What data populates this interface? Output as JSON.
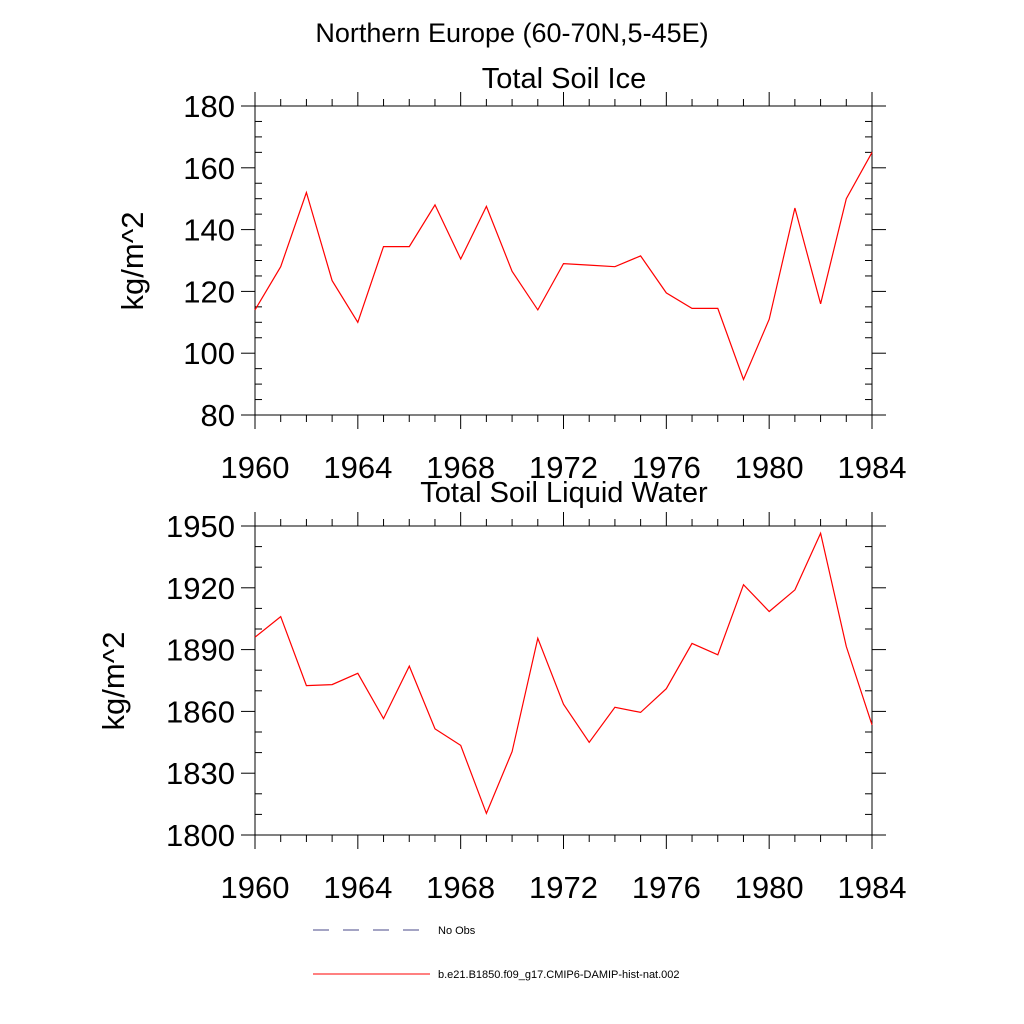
{
  "figure": {
    "main_title": "Northern Europe (60-70N,5-45E)"
  },
  "legend": {
    "items": [
      {
        "label": "No Obs",
        "style": "dashed",
        "color": "#4a4a8a"
      },
      {
        "label": "b.e21.B1850.f09_g17.CMIP6-DAMIP-hist-nat.002",
        "style": "solid",
        "color": "#ff0000"
      }
    ]
  },
  "chart_data": [
    {
      "type": "line",
      "title": "Total Soil Ice",
      "xlabel": "",
      "ylabel": "kg/m^2",
      "xlim": [
        1960,
        1984
      ],
      "ylim": [
        80,
        180
      ],
      "xticks": [
        1960,
        1964,
        1968,
        1972,
        1976,
        1980,
        1984
      ],
      "yticks": [
        80,
        100,
        120,
        140,
        160,
        180
      ],
      "y_minor_step": 5,
      "x_minor_step": 1,
      "grid": false,
      "series": [
        {
          "name": "b.e21.B1850.f09_g17.CMIP6-DAMIP-hist-nat.002",
          "color": "#ff0000",
          "x": [
            1960,
            1961,
            1962,
            1963,
            1964,
            1965,
            1966,
            1967,
            1968,
            1969,
            1970,
            1971,
            1972,
            1973,
            1974,
            1975,
            1976,
            1977,
            1978,
            1979,
            1980,
            1981,
            1982,
            1983,
            1984
          ],
          "y": [
            114,
            128,
            152,
            123.5,
            110,
            134.5,
            134.5,
            148,
            130.5,
            147.5,
            126.5,
            114,
            129,
            128.5,
            128,
            131.5,
            119.5,
            114.5,
            114.5,
            91.5,
            111,
            147,
            116,
            150,
            165
          ]
        }
      ]
    },
    {
      "type": "line",
      "title": "Total Soil Liquid Water",
      "xlabel": "",
      "ylabel": "kg/m^2",
      "xlim": [
        1960,
        1984
      ],
      "ylim": [
        1800,
        1950
      ],
      "xticks": [
        1960,
        1964,
        1968,
        1972,
        1976,
        1980,
        1984
      ],
      "yticks": [
        1800,
        1830,
        1860,
        1890,
        1920,
        1950
      ],
      "y_minor_step": 10,
      "x_minor_step": 1,
      "grid": false,
      "series": [
        {
          "name": "b.e21.B1850.f09_g17.CMIP6-DAMIP-hist-nat.002",
          "color": "#ff0000",
          "x": [
            1960,
            1961,
            1962,
            1963,
            1964,
            1965,
            1966,
            1967,
            1968,
            1969,
            1970,
            1971,
            1972,
            1973,
            1974,
            1975,
            1976,
            1977,
            1978,
            1979,
            1980,
            1981,
            1982,
            1983,
            1984
          ],
          "y": [
            1896,
            1906,
            1872.5,
            1873,
            1878.5,
            1856.5,
            1882,
            1851.5,
            1843.5,
            1810.5,
            1840.5,
            1895.5,
            1863.5,
            1845,
            1862,
            1859.5,
            1871,
            1893,
            1887.5,
            1921.5,
            1908.5,
            1919,
            1946.5,
            1891.5,
            1853.5
          ]
        }
      ]
    }
  ]
}
